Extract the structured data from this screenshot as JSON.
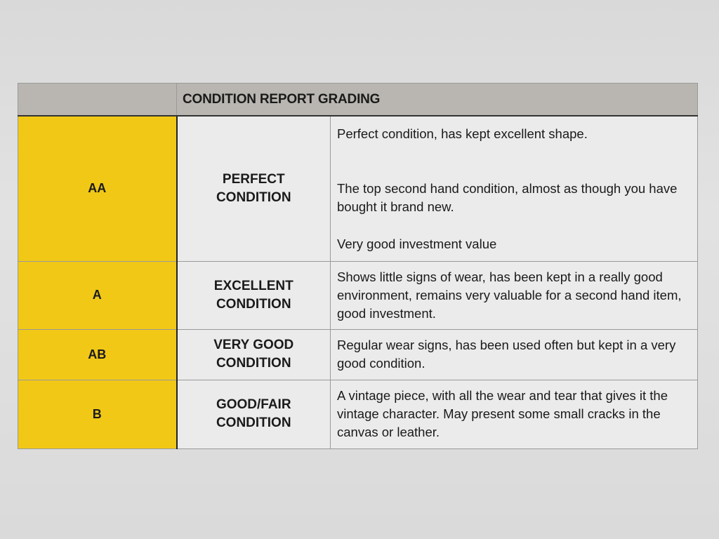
{
  "table": {
    "title": "CONDITION REPORT GRADING",
    "colors": {
      "grade_bg": "#f1c816",
      "header_bg": "#b9b6b1"
    },
    "rows": [
      {
        "grade": "AA",
        "condition": [
          "PERFECT",
          "CONDITION"
        ],
        "description": [
          "Perfect condition, has kept excellent shape.",
          "The top second hand condition, almost as though you have bought it brand new.",
          "Very good investment value"
        ]
      },
      {
        "grade": "A",
        "condition": [
          "EXCELLENT",
          "CONDITION"
        ],
        "description": [
          "Shows little signs of wear, has been kept in a really good environment, remains very valuable for a second hand item, good investment."
        ]
      },
      {
        "grade": "AB",
        "condition": [
          "VERY GOOD",
          "CONDITION"
        ],
        "description": [
          "Regular wear signs, has been used often but kept in a very good condition."
        ]
      },
      {
        "grade": "B",
        "condition": [
          "GOOD/FAIR",
          "CONDITION"
        ],
        "description": [
          "A vintage piece, with all the wear and tear that gives it the vintage character. May present some small cracks in the canvas or leather."
        ]
      }
    ]
  }
}
